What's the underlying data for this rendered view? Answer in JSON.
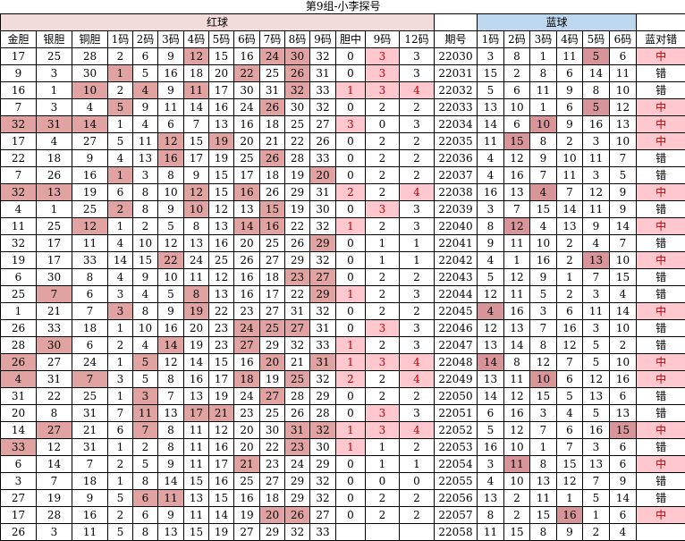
{
  "title": "第9组-小李探号",
  "bands": {
    "red": "红球",
    "blue": "蓝球"
  },
  "columns": [
    "金胆",
    "银胆",
    "铜胆",
    "1码",
    "2码",
    "3码",
    "4码",
    "5码",
    "6码",
    "7码",
    "8码",
    "9码",
    "胆中",
    "9码",
    "12码",
    "期号",
    "1码",
    "2码",
    "3码",
    "4码",
    "5码",
    "6码",
    "蓝对错"
  ],
  "colors": {
    "red_band": "#F2DCDB",
    "blue_band": "#BDD7EE",
    "red_highlight": "#E0A3A1",
    "pink_highlight": "#FFC7CE",
    "blue_hit_highlight": "#D89599",
    "hit_text_red": "#C00000"
  },
  "rows": [
    {
      "period": "22030",
      "red": [
        "17",
        "25",
        "28",
        "2",
        "6",
        "9",
        "12",
        "15",
        "16",
        "24",
        "30",
        "32"
      ],
      "red_hl": [
        6,
        9,
        10
      ],
      "dan": [
        "0",
        "3",
        "3"
      ],
      "dan_hl": [
        1
      ],
      "blue": [
        "3",
        "8",
        "1",
        "11",
        "5",
        "6"
      ],
      "blue_hit": 4,
      "result": "中",
      "result_hit": true
    },
    {
      "period": "22031",
      "red": [
        "9",
        "3",
        "30",
        "1",
        "5",
        "16",
        "18",
        "20",
        "22",
        "25",
        "26",
        "31"
      ],
      "red_hl": [
        3,
        8,
        10
      ],
      "dan": [
        "0",
        "3",
        "3"
      ],
      "dan_hl": [
        1
      ],
      "blue": [
        "15",
        "2",
        "8",
        "6",
        "14",
        "11"
      ],
      "blue_hit": -1,
      "result": "错",
      "result_hit": false
    },
    {
      "period": "22032",
      "red": [
        "16",
        "1",
        "10",
        "2",
        "4",
        "9",
        "11",
        "17",
        "30",
        "31",
        "32",
        "33"
      ],
      "red_hl": [
        2,
        4,
        6,
        10
      ],
      "dan": [
        "1",
        "3",
        "4"
      ],
      "dan_hl": [
        0,
        1,
        2
      ],
      "blue": [
        "5",
        "6",
        "11",
        "9",
        "8",
        "10"
      ],
      "blue_hit": -1,
      "result": "错",
      "result_hit": false
    },
    {
      "period": "22033",
      "red": [
        "7",
        "3",
        "4",
        "5",
        "9",
        "11",
        "14",
        "16",
        "24",
        "26",
        "30",
        "32"
      ],
      "red_hl": [
        3,
        9
      ],
      "dan": [
        "0",
        "2",
        "2"
      ],
      "dan_hl": [],
      "blue": [
        "13",
        "10",
        "1",
        "6",
        "5",
        "12"
      ],
      "blue_hit": 4,
      "result": "中",
      "result_hit": true
    },
    {
      "period": "22034",
      "red": [
        "32",
        "31",
        "14",
        "1",
        "4",
        "6",
        "7",
        "13",
        "16",
        "18",
        "25",
        "27"
      ],
      "red_hl": [
        0,
        1,
        2
      ],
      "dan": [
        "3",
        "0",
        "3"
      ],
      "dan_hl": [
        0
      ],
      "blue": [
        "14",
        "6",
        "10",
        "9",
        "16",
        "13"
      ],
      "blue_hit": 2,
      "result": "中",
      "result_hit": true
    },
    {
      "period": "22035",
      "red": [
        "17",
        "4",
        "27",
        "5",
        "11",
        "12",
        "15",
        "19",
        "20",
        "21",
        "22",
        "26"
      ],
      "red_hl": [
        5,
        7
      ],
      "dan": [
        "0",
        "2",
        "2"
      ],
      "dan_hl": [],
      "blue": [
        "11",
        "15",
        "8",
        "2",
        "3",
        "10"
      ],
      "blue_hit": 1,
      "result": "中",
      "result_hit": true
    },
    {
      "period": "22036",
      "red": [
        "22",
        "18",
        "9",
        "4",
        "13",
        "16",
        "17",
        "19",
        "25",
        "26",
        "28",
        "33"
      ],
      "red_hl": [
        5,
        9
      ],
      "dan": [
        "0",
        "2",
        "2"
      ],
      "dan_hl": [],
      "blue": [
        "4",
        "12",
        "9",
        "10",
        "11",
        "7"
      ],
      "blue_hit": -1,
      "result": "错",
      "result_hit": false
    },
    {
      "period": "22037",
      "red": [
        "7",
        "26",
        "16",
        "1",
        "3",
        "8",
        "9",
        "15",
        "17",
        "18",
        "19",
        "20"
      ],
      "red_hl": [
        3,
        11
      ],
      "dan": [
        "0",
        "2",
        "2"
      ],
      "dan_hl": [],
      "blue": [
        "4",
        "16",
        "7",
        "11",
        "3",
        "5"
      ],
      "blue_hit": -1,
      "result": "错",
      "result_hit": false
    },
    {
      "period": "22038",
      "red": [
        "32",
        "13",
        "19",
        "6",
        "8",
        "10",
        "12",
        "15",
        "16",
        "26",
        "29",
        "31"
      ],
      "red_hl": [
        0,
        1,
        6,
        8
      ],
      "dan": [
        "2",
        "2",
        "4"
      ],
      "dan_hl": [
        0,
        2
      ],
      "blue": [
        "16",
        "13",
        "4",
        "7",
        "12",
        "9"
      ],
      "blue_hit": 2,
      "result": "中",
      "result_hit": true
    },
    {
      "period": "22039",
      "red": [
        "4",
        "1",
        "25",
        "2",
        "8",
        "9",
        "10",
        "12",
        "13",
        "15",
        "19",
        "30"
      ],
      "red_hl": [
        3,
        6,
        9
      ],
      "dan": [
        "0",
        "3",
        "3"
      ],
      "dan_hl": [
        1
      ],
      "blue": [
        "3",
        "7",
        "15",
        "14",
        "11",
        "9"
      ],
      "blue_hit": -1,
      "result": "错",
      "result_hit": false
    },
    {
      "period": "22040",
      "red": [
        "11",
        "25",
        "12",
        "1",
        "2",
        "5",
        "8",
        "13",
        "14",
        "16",
        "22",
        "32"
      ],
      "red_hl": [
        2,
        8,
        9
      ],
      "dan": [
        "1",
        "2",
        "3"
      ],
      "dan_hl": [
        0
      ],
      "blue": [
        "8",
        "12",
        "4",
        "13",
        "9",
        "14"
      ],
      "blue_hit": 1,
      "result": "中",
      "result_hit": true
    },
    {
      "period": "22041",
      "red": [
        "32",
        "17",
        "11",
        "4",
        "10",
        "12",
        "13",
        "16",
        "20",
        "25",
        "26",
        "29"
      ],
      "red_hl": [
        11
      ],
      "dan": [
        "0",
        "1",
        "1"
      ],
      "dan_hl": [],
      "blue": [
        "9",
        "11",
        "10",
        "2",
        "4",
        "7"
      ],
      "blue_hit": -1,
      "result": "错",
      "result_hit": false
    },
    {
      "period": "22042",
      "red": [
        "19",
        "17",
        "33",
        "14",
        "15",
        "22",
        "24",
        "25",
        "26",
        "27",
        "29",
        "32"
      ],
      "red_hl": [
        5
      ],
      "dan": [
        "0",
        "1",
        "1"
      ],
      "dan_hl": [],
      "blue": [
        "4",
        "1",
        "16",
        "2",
        "13",
        "10"
      ],
      "blue_hit": 4,
      "result": "中",
      "result_hit": true
    },
    {
      "period": "22043",
      "red": [
        "6",
        "30",
        "8",
        "4",
        "9",
        "10",
        "11",
        "12",
        "16",
        "18",
        "23",
        "27"
      ],
      "red_hl": [
        10,
        11
      ],
      "dan": [
        "0",
        "2",
        "2"
      ],
      "dan_hl": [],
      "blue": [
        "5",
        "12",
        "9",
        "1",
        "7",
        "15"
      ],
      "blue_hit": -1,
      "result": "错",
      "result_hit": false
    },
    {
      "period": "22044",
      "red": [
        "25",
        "7",
        "6",
        "3",
        "4",
        "5",
        "8",
        "13",
        "16",
        "17",
        "22",
        "29"
      ],
      "red_hl": [
        1,
        6,
        11
      ],
      "dan": [
        "1",
        "2",
        "3"
      ],
      "dan_hl": [
        0
      ],
      "blue": [
        "12",
        "11",
        "5",
        "2",
        "3",
        "4"
      ],
      "blue_hit": -1,
      "result": "错",
      "result_hit": false
    },
    {
      "period": "22045",
      "red": [
        "1",
        "21",
        "7",
        "3",
        "8",
        "9",
        "19",
        "22",
        "23",
        "27",
        "31",
        "32"
      ],
      "red_hl": [
        3,
        6
      ],
      "dan": [
        "0",
        "2",
        "2"
      ],
      "dan_hl": [],
      "blue": [
        "4",
        "16",
        "3",
        "6",
        "11",
        "14"
      ],
      "blue_hit": 0,
      "result": "中",
      "result_hit": true
    },
    {
      "period": "22046",
      "red": [
        "26",
        "33",
        "18",
        "1",
        "10",
        "16",
        "20",
        "23",
        "24",
        "25",
        "27",
        "31"
      ],
      "red_hl": [
        8,
        9,
        10
      ],
      "dan": [
        "0",
        "3",
        "3"
      ],
      "dan_hl": [
        1
      ],
      "blue": [
        "12",
        "13",
        "7",
        "16",
        "3",
        "10"
      ],
      "blue_hit": -1,
      "result": "错",
      "result_hit": false
    },
    {
      "period": "22047",
      "red": [
        "28",
        "30",
        "6",
        "2",
        "4",
        "14",
        "19",
        "23",
        "27",
        "29",
        "32",
        "33"
      ],
      "red_hl": [
        1,
        5,
        8
      ],
      "dan": [
        "1",
        "2",
        "3"
      ],
      "dan_hl": [
        0
      ],
      "blue": [
        "13",
        "14",
        "8",
        "12",
        "5",
        "2"
      ],
      "blue_hit": -1,
      "result": "错",
      "result_hit": false
    },
    {
      "period": "22048",
      "red": [
        "26",
        "27",
        "24",
        "1",
        "5",
        "12",
        "14",
        "15",
        "16",
        "20",
        "21",
        "31"
      ],
      "red_hl": [
        0,
        4,
        9,
        11
      ],
      "dan": [
        "1",
        "3",
        "4"
      ],
      "dan_hl": [
        0,
        1,
        2
      ],
      "blue": [
        "14",
        "8",
        "12",
        "7",
        "5",
        "10"
      ],
      "blue_hit": 0,
      "result": "中",
      "result_hit": true
    },
    {
      "period": "22049",
      "red": [
        "4",
        "31",
        "7",
        "3",
        "5",
        "8",
        "16",
        "17",
        "18",
        "19",
        "25",
        "32"
      ],
      "red_hl": [
        0,
        2,
        8,
        10
      ],
      "dan": [
        "2",
        "2",
        "4"
      ],
      "dan_hl": [
        0,
        2
      ],
      "blue": [
        "13",
        "11",
        "10",
        "6",
        "12",
        "16"
      ],
      "blue_hit": 2,
      "result": "中",
      "result_hit": true
    },
    {
      "period": "22050",
      "red": [
        "31",
        "22",
        "25",
        "1",
        "3",
        "7",
        "13",
        "19",
        "24",
        "27",
        "28",
        "29"
      ],
      "red_hl": [
        4,
        9
      ],
      "dan": [
        "0",
        "2",
        "2"
      ],
      "dan_hl": [],
      "blue": [
        "14",
        "12",
        "15",
        "5",
        "13",
        "6"
      ],
      "blue_hit": -1,
      "result": "错",
      "result_hit": false
    },
    {
      "period": "22051",
      "red": [
        "20",
        "8",
        "31",
        "7",
        "11",
        "13",
        "17",
        "21",
        "23",
        "25",
        "26",
        "28"
      ],
      "red_hl": [
        4,
        6,
        7
      ],
      "dan": [
        "0",
        "3",
        "3"
      ],
      "dan_hl": [
        1
      ],
      "blue": [
        "6",
        "16",
        "3",
        "4",
        "5",
        "13"
      ],
      "blue_hit": -1,
      "result": "错",
      "result_hit": false
    },
    {
      "period": "22052",
      "red": [
        "14",
        "27",
        "21",
        "6",
        "7",
        "8",
        "11",
        "12",
        "20",
        "30",
        "31",
        "32"
      ],
      "red_hl": [
        1,
        4,
        10,
        11
      ],
      "dan": [
        "1",
        "3",
        "4"
      ],
      "dan_hl": [
        0,
        1,
        2
      ],
      "blue": [
        "5",
        "12",
        "7",
        "6",
        "16",
        "15"
      ],
      "blue_hit": 5,
      "result": "中",
      "result_hit": true
    },
    {
      "period": "22053",
      "red": [
        "33",
        "12",
        "31",
        "1",
        "2",
        "8",
        "11",
        "16",
        "20",
        "22",
        "23",
        "30"
      ],
      "red_hl": [
        0,
        10
      ],
      "dan": [
        "1",
        "1",
        "2"
      ],
      "dan_hl": [
        0
      ],
      "blue": [
        "16",
        "10",
        "1",
        "7",
        "3",
        "6"
      ],
      "blue_hit": -1,
      "result": "错",
      "result_hit": false
    },
    {
      "period": "22054",
      "red": [
        "6",
        "14",
        "7",
        "2",
        "5",
        "9",
        "11",
        "17",
        "21",
        "23",
        "24",
        "29"
      ],
      "red_hl": [
        8
      ],
      "dan": [
        "0",
        "1",
        "1"
      ],
      "dan_hl": [],
      "blue": [
        "3",
        "11",
        "8",
        "15",
        "13",
        "6"
      ],
      "blue_hit": 1,
      "result": "中",
      "result_hit": true
    },
    {
      "period": "22055",
      "red": [
        "3",
        "7",
        "18",
        "1",
        "8",
        "14",
        "15",
        "16",
        "25",
        "27",
        "29",
        "32"
      ],
      "red_hl": [],
      "dan": [
        "0",
        "0",
        "0"
      ],
      "dan_hl": [],
      "blue": [
        "4",
        "10",
        "13",
        "12",
        "7",
        "9"
      ],
      "blue_hit": -1,
      "result": "错",
      "result_hit": false
    },
    {
      "period": "22056",
      "red": [
        "27",
        "19",
        "9",
        "5",
        "6",
        "11",
        "13",
        "15",
        "16",
        "18",
        "29",
        "32"
      ],
      "red_hl": [
        4,
        5
      ],
      "dan": [
        "0",
        "2",
        "2"
      ],
      "dan_hl": [],
      "blue": [
        "13",
        "2",
        "11",
        "1",
        "5",
        "14"
      ],
      "blue_hit": -1,
      "result": "错",
      "result_hit": false
    },
    {
      "period": "22057",
      "red": [
        "17",
        "28",
        "16",
        "2",
        "6",
        "9",
        "11",
        "14",
        "19",
        "20",
        "26",
        "27"
      ],
      "red_hl": [
        9,
        10
      ],
      "dan": [
        "0",
        "2",
        "2"
      ],
      "dan_hl": [],
      "blue": [
        "8",
        "2",
        "15",
        "16",
        "1",
        "6"
      ],
      "blue_hit": 3,
      "result": "中",
      "result_hit": true
    },
    {
      "period": "22058",
      "red": [
        "26",
        "3",
        "11",
        "5",
        "8",
        "13",
        "15",
        "19",
        "27",
        "29",
        "32",
        "33"
      ],
      "red_hl": [],
      "dan": [
        "",
        "",
        ""
      ],
      "dan_hl": [],
      "blue": [
        "11",
        "15",
        "8",
        "9",
        "2",
        "4"
      ],
      "blue_hit": -1,
      "result": "",
      "result_hit": false
    }
  ]
}
